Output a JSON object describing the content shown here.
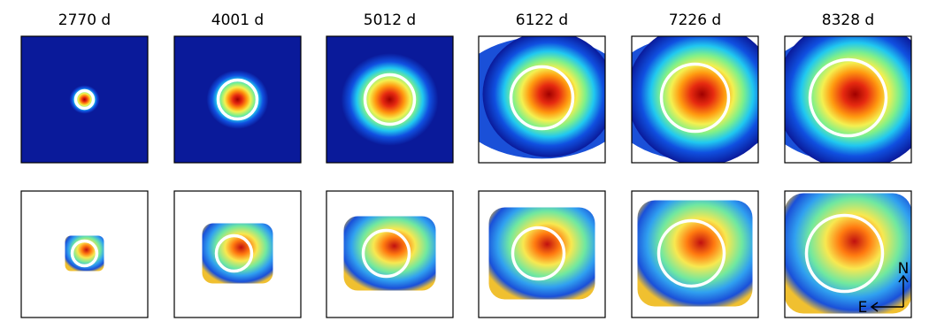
{
  "panels": [
    {
      "title": "2770 d"
    },
    {
      "title": "4001 d"
    },
    {
      "title": "5012 d"
    },
    {
      "title": "6122 d"
    },
    {
      "title": "7226 d"
    },
    {
      "title": "8328 d"
    }
  ],
  "compass": {
    "north": "N",
    "east": "E"
  }
}
